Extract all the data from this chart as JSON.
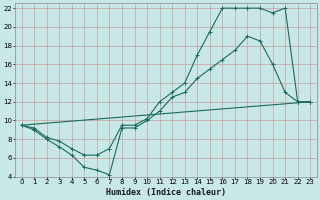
{
  "xlabel": "Humidex (Indice chaleur)",
  "bg_color": "#c8e8e8",
  "grid_color": "#b0d0d0",
  "line_color": "#1a6b5a",
  "xlim": [
    -0.5,
    23.5
  ],
  "ylim": [
    4,
    22.5
  ],
  "xticks": [
    0,
    1,
    2,
    3,
    4,
    5,
    6,
    7,
    8,
    9,
    10,
    11,
    12,
    13,
    14,
    15,
    16,
    17,
    18,
    19,
    20,
    21,
    22,
    23
  ],
  "yticks": [
    4,
    6,
    8,
    10,
    12,
    14,
    16,
    18,
    20,
    22
  ],
  "line1_x": [
    0,
    1,
    2,
    3,
    4,
    5,
    6,
    7,
    8,
    9,
    10,
    11,
    12,
    13,
    14,
    15,
    16,
    17,
    18,
    19,
    20,
    21,
    22,
    23
  ],
  "line1_y": [
    9.5,
    9.0,
    8.0,
    7.2,
    6.3,
    5.0,
    4.7,
    4.2,
    9.2,
    9.2,
    10.0,
    11.0,
    12.5,
    13.0,
    14.5,
    15.5,
    16.5,
    17.5,
    19.0,
    18.5,
    16.0,
    13.0,
    12.0,
    12.0
  ],
  "line2_x": [
    0,
    1,
    2,
    3,
    4,
    5,
    6,
    7,
    8,
    9,
    10,
    11,
    12,
    13,
    14,
    15,
    16,
    17,
    18,
    19,
    20,
    21,
    22,
    23
  ],
  "line2_y": [
    9.5,
    9.2,
    8.2,
    7.8,
    7.0,
    6.3,
    6.3,
    7.0,
    9.5,
    9.5,
    10.2,
    12.0,
    13.0,
    14.0,
    17.0,
    19.5,
    22.0,
    22.0,
    22.0,
    22.0,
    21.5,
    22.0,
    12.0,
    12.0
  ],
  "line3_x": [
    0,
    23
  ],
  "line3_y": [
    9.5,
    12.0
  ]
}
